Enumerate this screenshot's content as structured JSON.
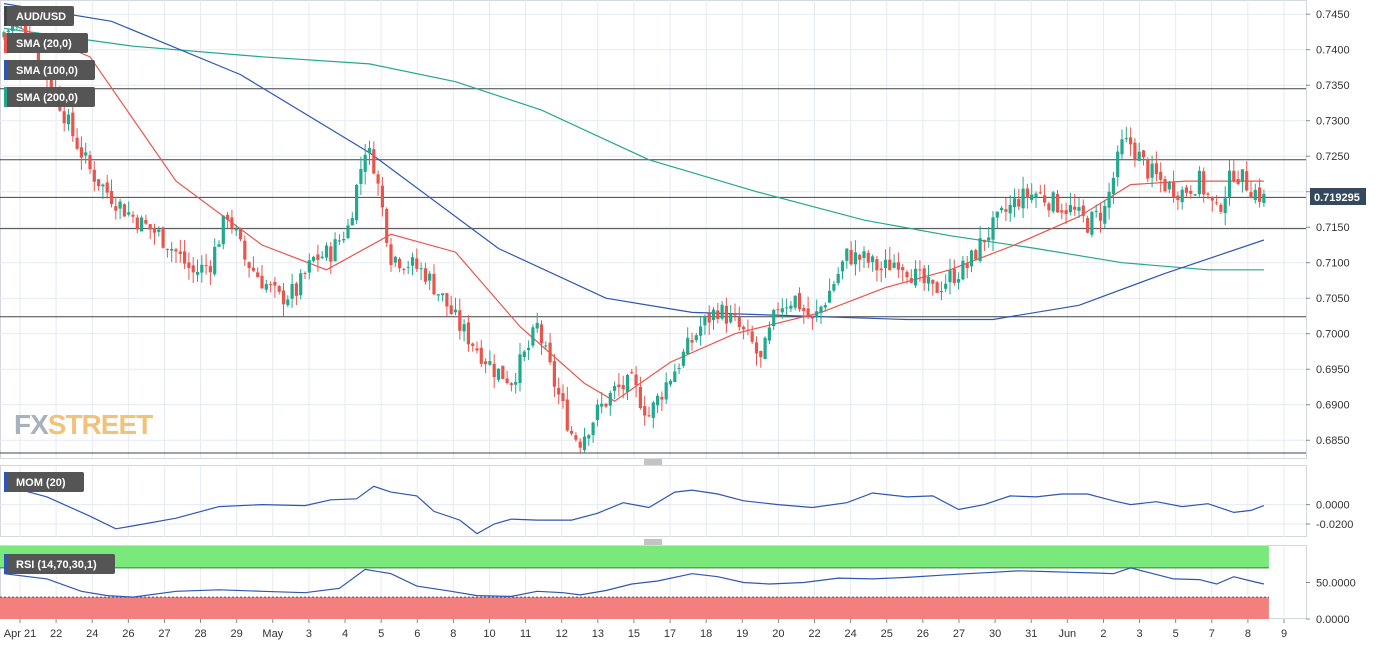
{
  "chart_data": [
    {
      "type": "candlestick",
      "panel": "price",
      "indicators": [
        {
          "name": "AUD/USD",
          "color": "#444444"
        },
        {
          "name": "SMA (20,0)",
          "color": "#e8554d"
        },
        {
          "name": "SMA (100,0)",
          "color": "#2f55b5"
        },
        {
          "name": "SMA (200,0)",
          "color": "#22a88e"
        }
      ],
      "ylim": [
        0.6825,
        0.747
      ],
      "y_ticks": [
        "0.7450",
        "0.7400",
        "0.7350",
        "0.7300",
        "0.7250",
        "0.7200",
        "0.7150",
        "0.7100",
        "0.7050",
        "0.7000",
        "0.6950",
        "0.6900",
        "0.6850"
      ],
      "last_price": "0.719295",
      "horizontal_levels": [
        0.7345,
        0.7245,
        0.7192,
        0.7148,
        0.7024,
        0.6832
      ],
      "x_labels": [
        "Apr 21",
        "22",
        "24",
        "26",
        "27",
        "28",
        "29",
        "May",
        "3",
        "4",
        "5",
        "6",
        "8",
        "10",
        "11",
        "12",
        "13",
        "15",
        "17",
        "18",
        "19",
        "20",
        "22",
        "24",
        "25",
        "26",
        "27",
        "30",
        "31",
        "Jun",
        "2",
        "3",
        "5",
        "7",
        "8",
        "9"
      ],
      "close_anchors": [
        [
          0,
          0.7425
        ],
        [
          4,
          0.744
        ],
        [
          8,
          0.739
        ],
        [
          12,
          0.734
        ],
        [
          16,
          0.728
        ],
        [
          20,
          0.723
        ],
        [
          24,
          0.72
        ],
        [
          28,
          0.7175
        ],
        [
          32,
          0.7155
        ],
        [
          36,
          0.714
        ],
        [
          40,
          0.7115
        ],
        [
          44,
          0.7085
        ],
        [
          48,
          0.71
        ],
        [
          52,
          0.717
        ],
        [
          56,
          0.7105
        ],
        [
          60,
          0.7075
        ],
        [
          64,
          0.705
        ],
        [
          68,
          0.706
        ],
        [
          72,
          0.7105
        ],
        [
          76,
          0.7115
        ],
        [
          80,
          0.715
        ],
        [
          84,
          0.7262
        ],
        [
          86,
          0.724
        ],
        [
          90,
          0.711
        ],
        [
          94,
          0.71
        ],
        [
          98,
          0.7085
        ],
        [
          102,
          0.705
        ],
        [
          106,
          0.701
        ],
        [
          110,
          0.698
        ],
        [
          114,
          0.695
        ],
        [
          118,
          0.6935
        ],
        [
          122,
          0.698
        ],
        [
          124,
          0.701
        ],
        [
          128,
          0.693
        ],
        [
          132,
          0.686
        ],
        [
          134,
          0.685
        ],
        [
          138,
          0.689
        ],
        [
          142,
          0.692
        ],
        [
          146,
          0.693
        ],
        [
          150,
          0.6885
        ],
        [
          154,
          0.693
        ],
        [
          158,
          0.697
        ],
        [
          162,
          0.701
        ],
        [
          166,
          0.7035
        ],
        [
          170,
          0.7015
        ],
        [
          174,
          0.6985
        ],
        [
          176,
          0.696
        ],
        [
          180,
          0.704
        ],
        [
          184,
          0.705
        ],
        [
          188,
          0.7015
        ],
        [
          192,
          0.706
        ],
        [
          196,
          0.711
        ],
        [
          200,
          0.7105
        ],
        [
          204,
          0.709
        ],
        [
          208,
          0.7105
        ],
        [
          212,
          0.708
        ],
        [
          216,
          0.706
        ],
        [
          220,
          0.708
        ],
        [
          224,
          0.7095
        ],
        [
          228,
          0.7135
        ],
        [
          232,
          0.7165
        ],
        [
          236,
          0.719
        ],
        [
          240,
          0.7198
        ],
        [
          244,
          0.7185
        ],
        [
          248,
          0.7175
        ],
        [
          252,
          0.7155
        ],
        [
          256,
          0.7175
        ],
        [
          260,
          0.7265
        ],
        [
          262,
          0.7268
        ],
        [
          266,
          0.723
        ],
        [
          270,
          0.721
        ],
        [
          274,
          0.72
        ],
        [
          278,
          0.7215
        ],
        [
          282,
          0.717
        ],
        [
          286,
          0.723
        ],
        [
          290,
          0.7205
        ],
        [
          293,
          0.719
        ]
      ],
      "sma20": [
        [
          0,
          0.744
        ],
        [
          20,
          0.739
        ],
        [
          40,
          0.7215
        ],
        [
          60,
          0.7125
        ],
        [
          75,
          0.709
        ],
        [
          90,
          0.714
        ],
        [
          105,
          0.7115
        ],
        [
          120,
          0.701
        ],
        [
          135,
          0.693
        ],
        [
          142,
          0.6905
        ],
        [
          155,
          0.696
        ],
        [
          170,
          0.7
        ],
        [
          190,
          0.703
        ],
        [
          205,
          0.7065
        ],
        [
          220,
          0.709
        ],
        [
          235,
          0.7125
        ],
        [
          250,
          0.7165
        ],
        [
          262,
          0.721
        ],
        [
          275,
          0.7215
        ],
        [
          293,
          0.7215
        ]
      ],
      "sma100": [
        [
          0,
          0.7465
        ],
        [
          25,
          0.744
        ],
        [
          55,
          0.7365
        ],
        [
          85,
          0.7255
        ],
        [
          115,
          0.712
        ],
        [
          140,
          0.705
        ],
        [
          160,
          0.703
        ],
        [
          185,
          0.7025
        ],
        [
          210,
          0.702
        ],
        [
          230,
          0.702
        ],
        [
          250,
          0.704
        ],
        [
          270,
          0.7085
        ],
        [
          293,
          0.7132
        ]
      ],
      "sma200": [
        [
          0,
          0.743
        ],
        [
          30,
          0.7405
        ],
        [
          60,
          0.739
        ],
        [
          85,
          0.738
        ],
        [
          105,
          0.7355
        ],
        [
          125,
          0.7315
        ],
        [
          150,
          0.7245
        ],
        [
          175,
          0.72
        ],
        [
          200,
          0.716
        ],
        [
          220,
          0.7138
        ],
        [
          240,
          0.712
        ],
        [
          260,
          0.71
        ],
        [
          280,
          0.709
        ],
        [
          293,
          0.709
        ]
      ]
    },
    {
      "type": "line",
      "panel": "momentum",
      "series": [
        {
          "name": "MOM (20)",
          "color": "#2f55b5"
        }
      ],
      "y_ticks": [
        "0.0000",
        "-0.0200"
      ],
      "ylim": [
        -0.0335,
        0.04
      ],
      "values": [
        [
          0,
          0.02
        ],
        [
          10,
          0.008
        ],
        [
          20,
          -0.012
        ],
        [
          26,
          -0.025
        ],
        [
          30,
          -0.022
        ],
        [
          40,
          -0.014
        ],
        [
          50,
          -0.002
        ],
        [
          60,
          0.0
        ],
        [
          70,
          -0.001
        ],
        [
          76,
          0.005
        ],
        [
          82,
          0.006
        ],
        [
          86,
          0.019
        ],
        [
          90,
          0.013
        ],
        [
          96,
          0.009
        ],
        [
          100,
          -0.007
        ],
        [
          106,
          -0.016
        ],
        [
          110,
          -0.03
        ],
        [
          114,
          -0.02
        ],
        [
          118,
          -0.015
        ],
        [
          124,
          -0.016
        ],
        [
          132,
          -0.016
        ],
        [
          138,
          -0.009
        ],
        [
          144,
          0.002
        ],
        [
          150,
          -0.003
        ],
        [
          156,
          0.013
        ],
        [
          160,
          0.015
        ],
        [
          166,
          0.011
        ],
        [
          172,
          0.004
        ],
        [
          180,
          0.0
        ],
        [
          188,
          -0.003
        ],
        [
          196,
          0.002
        ],
        [
          202,
          0.012
        ],
        [
          210,
          0.008
        ],
        [
          216,
          0.009
        ],
        [
          222,
          -0.005
        ],
        [
          228,
          0.0
        ],
        [
          234,
          0.009
        ],
        [
          240,
          0.008
        ],
        [
          246,
          0.011
        ],
        [
          252,
          0.011
        ],
        [
          258,
          0.004
        ],
        [
          262,
          0.0
        ],
        [
          268,
          0.003
        ],
        [
          274,
          -0.002
        ],
        [
          280,
          0.001
        ],
        [
          286,
          -0.008
        ],
        [
          290,
          -0.006
        ],
        [
          293,
          -0.001
        ]
      ]
    },
    {
      "type": "line",
      "panel": "rsi",
      "series": [
        {
          "name": "RSI (14,70,30,1)",
          "color": "#2f55b5"
        }
      ],
      "y_ticks": [
        "50.0000",
        "0.0000"
      ],
      "ylim": [
        0,
        100
      ],
      "overbought": 70,
      "oversold": 30,
      "values": [
        [
          0,
          62
        ],
        [
          10,
          55
        ],
        [
          18,
          38
        ],
        [
          24,
          32
        ],
        [
          30,
          30
        ],
        [
          40,
          38
        ],
        [
          50,
          40
        ],
        [
          60,
          38
        ],
        [
          70,
          36
        ],
        [
          78,
          42
        ],
        [
          84,
          68
        ],
        [
          90,
          62
        ],
        [
          96,
          45
        ],
        [
          104,
          38
        ],
        [
          110,
          32
        ],
        [
          118,
          31
        ],
        [
          124,
          38
        ],
        [
          130,
          36
        ],
        [
          134,
          33
        ],
        [
          140,
          39
        ],
        [
          146,
          48
        ],
        [
          152,
          52
        ],
        [
          160,
          62
        ],
        [
          166,
          58
        ],
        [
          172,
          50
        ],
        [
          178,
          48
        ],
        [
          186,
          50
        ],
        [
          194,
          56
        ],
        [
          202,
          55
        ],
        [
          210,
          57
        ],
        [
          218,
          60
        ],
        [
          224,
          62
        ],
        [
          230,
          64
        ],
        [
          236,
          66
        ],
        [
          242,
          65
        ],
        [
          248,
          64
        ],
        [
          254,
          63
        ],
        [
          258,
          62
        ],
        [
          262,
          70
        ],
        [
          266,
          64
        ],
        [
          272,
          55
        ],
        [
          278,
          54
        ],
        [
          282,
          48
        ],
        [
          286,
          58
        ],
        [
          290,
          52
        ],
        [
          293,
          48
        ]
      ]
    }
  ],
  "watermark": {
    "fx": "FX",
    "street": "STREET"
  },
  "colors": {
    "up": "#22a88e",
    "down": "#e8554d",
    "grid": "#e6eaf2",
    "level": "#444444",
    "pill": "#555555",
    "rsi_green": "#7be87b",
    "rsi_red": "#f47f7f"
  }
}
